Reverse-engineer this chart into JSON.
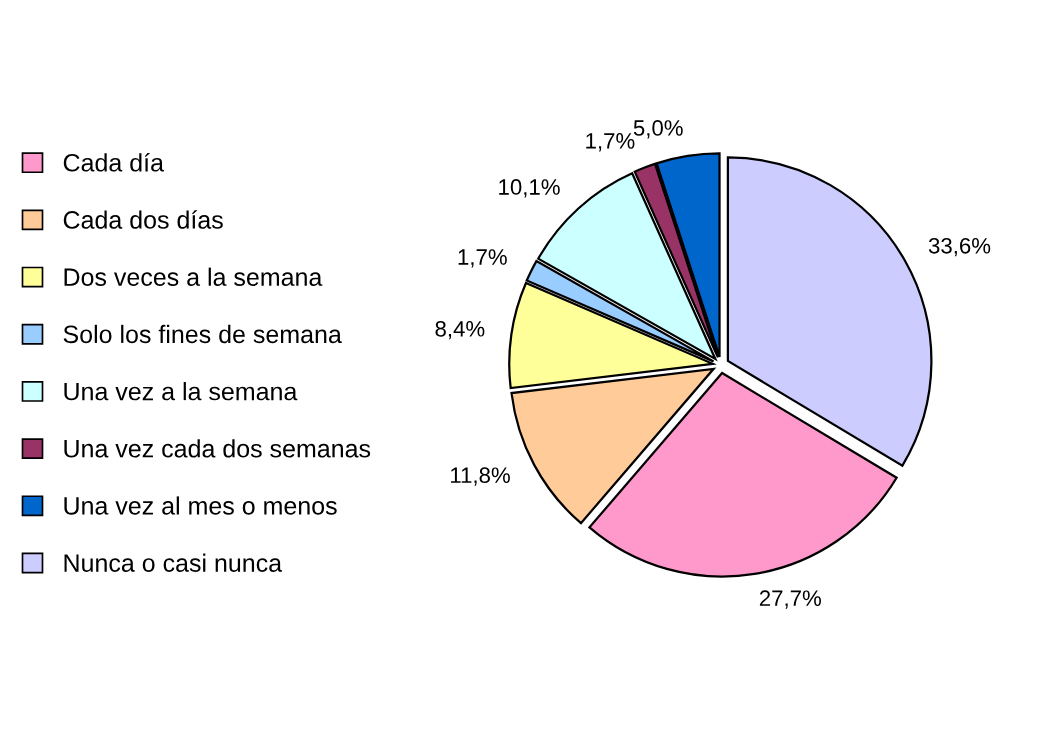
{
  "chart_data": {
    "type": "pie",
    "categories": [
      "Cada día",
      "Cada dos días",
      "Dos veces a la semana",
      "Solo los fines de semana",
      "Una vez a la semana",
      "Una vez cada dos semanas",
      "Una vez al mes o menos",
      "Nunca o casi nunca"
    ],
    "values": [
      27.7,
      11.8,
      8.4,
      1.7,
      10.1,
      1.7,
      5.0,
      33.6
    ],
    "value_labels": [
      "27,7%",
      "11,8%",
      "8,4%",
      "1,7%",
      "10,1%",
      "1,7%",
      "5,0%",
      "33,6%"
    ],
    "colors": [
      "#ff99cc",
      "#ffcc99",
      "#ffff99",
      "#99ccff",
      "#ccffff",
      "#993366",
      "#0066cc",
      "#ccccff"
    ],
    "legend": "left"
  }
}
